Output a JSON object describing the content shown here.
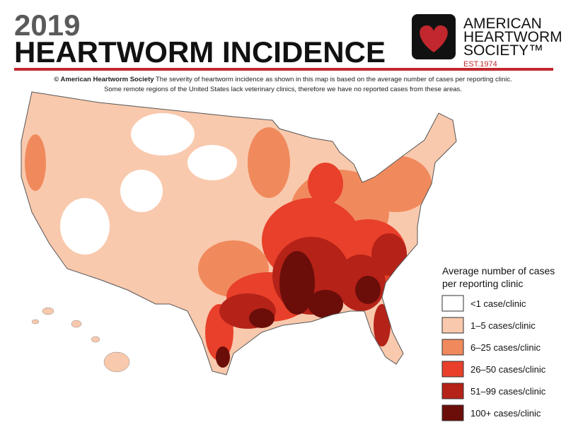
{
  "header": {
    "year": "2019",
    "title": "HEARTWORM INCIDENCE"
  },
  "logo": {
    "line1": "AMERICAN",
    "line2": "HEARTWORM",
    "line3": "SOCIETY™",
    "est": "EST.1974"
  },
  "caption": {
    "source": "© American Heartworm Society",
    "line1": "The severity of heartworm incidence as shown in this map is based on the average number of cases per reporting clinic.",
    "line2": "Some remote regions of the United States lack veterinary clinics, therefore we have no reported cases from these areas."
  },
  "legend": {
    "title": [
      "Average number of cases",
      "per reporting clinic"
    ],
    "items": [
      {
        "label": "<1 case/clinic",
        "color": "#ffffff"
      },
      {
        "label": "1–5 cases/clinic",
        "color": "#f9c9ad"
      },
      {
        "label": "6–25 cases/clinic",
        "color": "#f08a5d"
      },
      {
        "label": "26–50 cases/clinic",
        "color": "#e8402a"
      },
      {
        "label": "51–99 cases/clinic",
        "color": "#b52218"
      },
      {
        "label": "100+ cases/clinic",
        "color": "#6b0e0a"
      }
    ]
  }
}
